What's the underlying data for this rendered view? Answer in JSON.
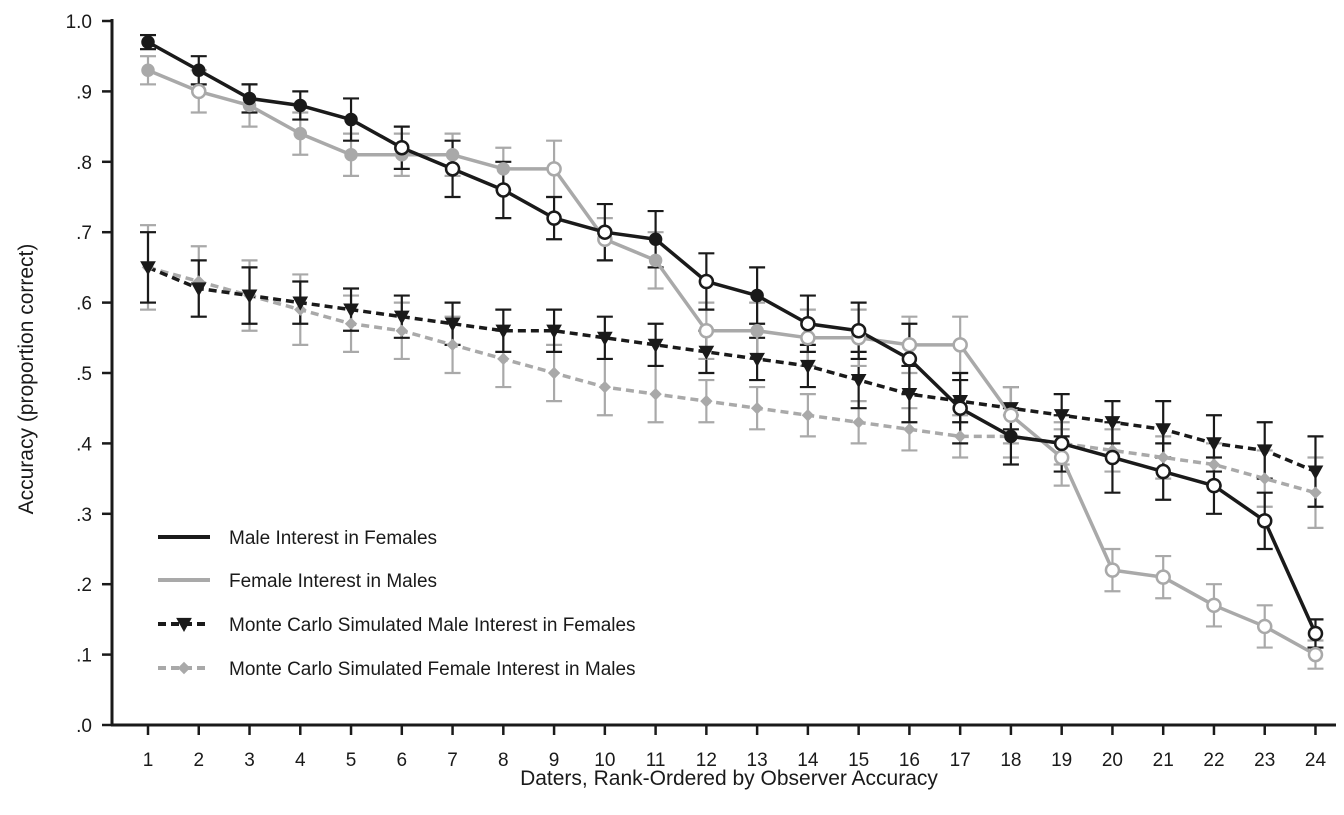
{
  "chart_data": {
    "type": "line",
    "title": "",
    "xlabel": "Daters, Rank-Ordered by Observer Accuracy",
    "ylabel": "Accuracy (proportion correct)",
    "x": [
      1,
      2,
      3,
      4,
      5,
      6,
      7,
      8,
      9,
      10,
      11,
      12,
      13,
      14,
      15,
      16,
      17,
      18,
      19,
      20,
      21,
      22,
      23,
      24
    ],
    "ylim": [
      0,
      1.0
    ],
    "yticks": [
      0,
      0.1,
      0.2,
      0.3,
      0.4,
      0.5,
      0.6,
      0.7,
      0.8,
      0.9,
      1.0
    ],
    "ytick_labels": [
      ".0",
      ".1",
      ".2",
      ".3",
      ".4",
      ".5",
      ".6",
      ".7",
      ".8",
      ".9",
      "1.0"
    ],
    "grid": false,
    "legend_position": "bottom-left",
    "series": [
      {
        "name": "Male Interest in Females",
        "color": "#1a1a1a",
        "line_style": "solid",
        "marker": "circle",
        "values": [
          0.97,
          0.93,
          0.89,
          0.88,
          0.86,
          0.82,
          0.79,
          0.76,
          0.72,
          0.7,
          0.69,
          0.63,
          0.61,
          0.57,
          0.56,
          0.52,
          0.45,
          0.41,
          0.4,
          0.38,
          0.36,
          0.34,
          0.29,
          0.13
        ],
        "error": [
          0.01,
          0.02,
          0.02,
          0.02,
          0.03,
          0.03,
          0.04,
          0.04,
          0.03,
          0.04,
          0.04,
          0.04,
          0.04,
          0.04,
          0.04,
          0.05,
          0.05,
          0.04,
          0.04,
          0.05,
          0.04,
          0.04,
          0.04,
          0.02
        ],
        "filled_indices": [
          1,
          2,
          3,
          4,
          5,
          11,
          13,
          18
        ]
      },
      {
        "name": "Female Interest in Males",
        "color": "#a9a9a9",
        "line_style": "solid",
        "marker": "circle",
        "values": [
          0.93,
          0.9,
          0.88,
          0.84,
          0.81,
          0.81,
          0.81,
          0.79,
          0.79,
          0.69,
          0.66,
          0.56,
          0.56,
          0.55,
          0.55,
          0.54,
          0.54,
          0.44,
          0.38,
          0.22,
          0.21,
          0.17,
          0.14,
          0.1
        ],
        "error": [
          0.02,
          0.03,
          0.03,
          0.03,
          0.03,
          0.03,
          0.03,
          0.03,
          0.04,
          0.03,
          0.04,
          0.04,
          0.04,
          0.04,
          0.04,
          0.04,
          0.04,
          0.04,
          0.04,
          0.03,
          0.03,
          0.03,
          0.03,
          0.02
        ],
        "filled_indices": [
          1,
          3,
          4,
          5,
          6,
          7,
          8,
          11,
          13
        ]
      },
      {
        "name": "Monte Carlo Simulated Male Interest in Females",
        "color": "#1a1a1a",
        "line_style": "dashed",
        "marker": "triangle-down",
        "values": [
          0.65,
          0.62,
          0.61,
          0.6,
          0.59,
          0.58,
          0.57,
          0.56,
          0.56,
          0.55,
          0.54,
          0.53,
          0.52,
          0.51,
          0.49,
          0.47,
          0.46,
          0.45,
          0.44,
          0.43,
          0.42,
          0.4,
          0.39,
          0.36
        ],
        "error": [
          0.05,
          0.04,
          0.04,
          0.03,
          0.03,
          0.03,
          0.03,
          0.03,
          0.03,
          0.03,
          0.03,
          0.03,
          0.03,
          0.03,
          0.04,
          0.04,
          0.03,
          0.03,
          0.03,
          0.03,
          0.04,
          0.04,
          0.04,
          0.05
        ]
      },
      {
        "name": "Monte Carlo Simulated Female Interest in Males",
        "color": "#a9a9a9",
        "line_style": "dashed",
        "marker": "diamond",
        "values": [
          0.65,
          0.63,
          0.61,
          0.59,
          0.57,
          0.56,
          0.54,
          0.52,
          0.5,
          0.48,
          0.47,
          0.46,
          0.45,
          0.44,
          0.43,
          0.42,
          0.41,
          0.41,
          0.4,
          0.39,
          0.38,
          0.37,
          0.35,
          0.33
        ],
        "error": [
          0.06,
          0.05,
          0.05,
          0.05,
          0.04,
          0.04,
          0.04,
          0.04,
          0.04,
          0.04,
          0.04,
          0.03,
          0.03,
          0.03,
          0.03,
          0.03,
          0.03,
          0.03,
          0.03,
          0.03,
          0.03,
          0.03,
          0.04,
          0.05
        ]
      }
    ]
  }
}
